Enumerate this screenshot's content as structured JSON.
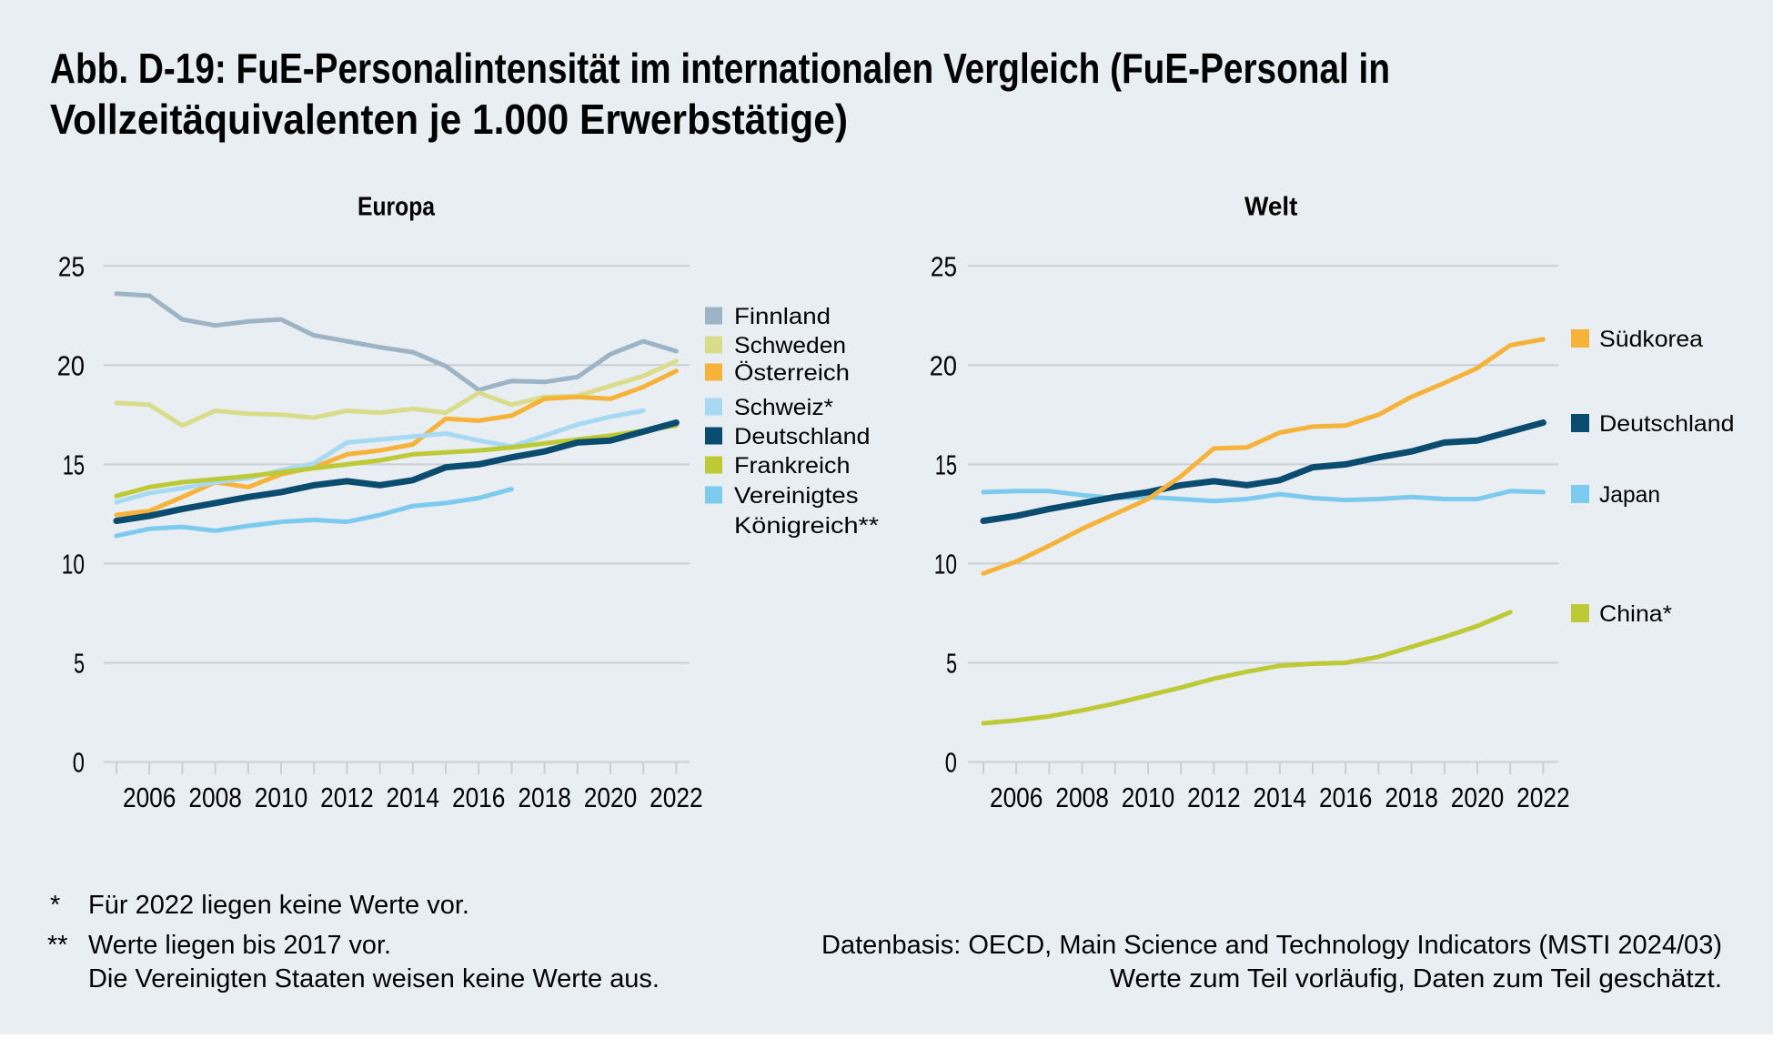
{
  "page": {
    "background": "#e8eef1",
    "text_color": "#000000",
    "grid_color": "#c9cfd4"
  },
  "title": {
    "line1": "Abb. D-19: FuE-Personalintensität im internationalen Vergleich (FuE-Personal in",
    "line2": "Vollzeitäquivalenten je 1.000 Erwerbstätige)"
  },
  "footnotes": {
    "left": [
      {
        "marker": "*",
        "text": "Für 2022 liegen keine Werte vor."
      },
      {
        "marker": "**",
        "text": "Werte liegen bis 2017 vor."
      },
      {
        "marker": "",
        "text": "Die Vereinigten Staaten weisen keine Werte aus."
      }
    ],
    "right": [
      "Datenbasis: OECD, Main Science and Technology Indicators (MSTI 2024/03)",
      "Werte zum Teil vorläufig, Daten zum Teil geschätzt."
    ]
  },
  "chart_data": [
    {
      "type": "line",
      "title": "Europa",
      "x": [
        2005,
        2006,
        2007,
        2008,
        2009,
        2010,
        2011,
        2012,
        2013,
        2014,
        2015,
        2016,
        2017,
        2018,
        2019,
        2020,
        2021,
        2022
      ],
      "x_tick_labels": [
        "2006",
        "2008",
        "2010",
        "2012",
        "2014",
        "2016",
        "2018",
        "2020",
        "2022"
      ],
      "ylim": [
        0,
        25
      ],
      "y_ticks": [
        0,
        5,
        10,
        15,
        20,
        25
      ],
      "grid": true,
      "legend_position": "right",
      "series": [
        {
          "name": "Finnland",
          "color": "#9db4c6",
          "values": [
            23.6,
            23.5,
            22.3,
            22.0,
            22.2,
            22.3,
            21.5,
            21.2,
            20.9,
            20.65,
            19.95,
            18.75,
            19.2,
            19.15,
            19.4,
            20.55,
            21.2,
            20.7
          ],
          "legend_label": [
            "Finnland"
          ]
        },
        {
          "name": "Schweden",
          "color": "#d9dd8b",
          "values": [
            18.1,
            18.0,
            16.95,
            17.7,
            17.55,
            17.5,
            17.35,
            17.7,
            17.6,
            17.8,
            17.6,
            18.6,
            18.0,
            18.4,
            18.45,
            18.95,
            19.45,
            20.2
          ],
          "legend_label": [
            "Schweden"
          ]
        },
        {
          "name": "Österreich",
          "color": "#f7b23a",
          "values": [
            12.45,
            12.65,
            13.35,
            14.1,
            13.85,
            14.5,
            14.85,
            15.5,
            15.7,
            16.0,
            17.3,
            17.2,
            17.45,
            18.3,
            18.4,
            18.3,
            18.9,
            19.7
          ],
          "legend_label": [
            "Österreich"
          ]
        },
        {
          "name": "Schweiz*",
          "color": "#a7d9f2",
          "values": [
            13.1,
            13.55,
            13.8,
            14.1,
            14.3,
            14.7,
            15.05,
            16.1,
            16.25,
            16.4,
            16.55,
            16.2,
            15.9,
            16.45,
            17.0,
            17.4,
            17.7,
            null
          ],
          "legend_label": [
            "Schweiz*"
          ]
        },
        {
          "name": "Deutschland",
          "color": "#0a4c70",
          "values": [
            12.15,
            12.4,
            12.75,
            13.05,
            13.35,
            13.6,
            13.95,
            14.15,
            13.95,
            14.2,
            14.85,
            15.0,
            15.35,
            15.65,
            16.1,
            16.2,
            16.65,
            17.1
          ],
          "legend_label": [
            "Deutschland"
          ]
        },
        {
          "name": "Frankreich",
          "color": "#bdc935",
          "values": [
            13.4,
            13.85,
            14.1,
            14.25,
            14.4,
            14.6,
            14.8,
            15.0,
            15.2,
            15.5,
            15.6,
            15.7,
            15.85,
            16.05,
            16.25,
            16.45,
            16.7,
            16.95
          ],
          "legend_label": [
            "Frankreich"
          ]
        },
        {
          "name": "Vereinigtes Königreich**",
          "color": "#7ccbee",
          "values": [
            11.4,
            11.75,
            11.85,
            11.65,
            11.9,
            12.1,
            12.2,
            12.1,
            12.45,
            12.9,
            13.05,
            13.3,
            13.75,
            null,
            null,
            null,
            null,
            null
          ],
          "legend_label": [
            "Vereinigtes",
            "Königreich**"
          ]
        }
      ]
    },
    {
      "type": "line",
      "title": "Welt",
      "x": [
        2005,
        2006,
        2007,
        2008,
        2009,
        2010,
        2011,
        2012,
        2013,
        2014,
        2015,
        2016,
        2017,
        2018,
        2019,
        2020,
        2021,
        2022
      ],
      "x_tick_labels": [
        "2006",
        "2008",
        "2010",
        "2012",
        "2014",
        "2016",
        "2018",
        "2020",
        "2022"
      ],
      "ylim": [
        0,
        25
      ],
      "y_ticks": [
        0,
        5,
        10,
        15,
        20,
        25
      ],
      "grid": true,
      "legend_position": "right",
      "series": [
        {
          "name": "Südkorea",
          "color": "#f7b23a",
          "values": [
            9.5,
            10.1,
            10.9,
            11.75,
            12.5,
            13.25,
            14.4,
            15.8,
            15.85,
            16.6,
            16.9,
            16.95,
            17.5,
            18.4,
            19.1,
            19.85,
            21.0,
            21.3
          ],
          "legend_label": [
            "Südkorea"
          ]
        },
        {
          "name": "Deutschland",
          "color": "#0a4c70",
          "values": [
            12.15,
            12.4,
            12.75,
            13.05,
            13.35,
            13.6,
            13.95,
            14.15,
            13.95,
            14.2,
            14.85,
            15.0,
            15.35,
            15.65,
            16.1,
            16.2,
            16.65,
            17.1
          ],
          "legend_label": [
            "Deutschland"
          ]
        },
        {
          "name": "Japan",
          "color": "#7ccbee",
          "values": [
            13.6,
            13.65,
            13.65,
            13.45,
            13.3,
            13.35,
            13.25,
            13.15,
            13.25,
            13.5,
            13.3,
            13.2,
            13.25,
            13.35,
            13.25,
            13.25,
            13.65,
            13.6
          ],
          "legend_label": [
            "Japan"
          ]
        },
        {
          "name": "China*",
          "color": "#bdc935",
          "values": [
            1.95,
            2.1,
            2.3,
            2.6,
            2.95,
            3.35,
            3.75,
            4.2,
            4.55,
            4.85,
            4.95,
            5.0,
            5.3,
            5.8,
            6.3,
            6.85,
            7.55,
            null
          ],
          "legend_label": [
            "China*"
          ]
        }
      ]
    }
  ]
}
